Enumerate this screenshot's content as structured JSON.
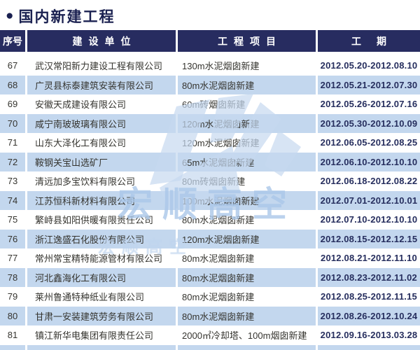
{
  "page": {
    "bullet": "●",
    "title": "国内新建工程"
  },
  "table": {
    "columns": [
      "序号",
      "建设单位",
      "工程项目",
      "工期"
    ],
    "rows": [
      {
        "no": "67",
        "company": "武汉常阳新力建设工程有限公司",
        "project": "130m水泥烟囱新建",
        "period": "2012.05.20-2012.08.10"
      },
      {
        "no": "68",
        "company": "广灵县标泰建筑安装有限公司",
        "project": "80m水泥烟囱新建",
        "period": "2012.05.21-2012.07.30"
      },
      {
        "no": "69",
        "company": "安徽天成建设有限公司",
        "project": "60m砖烟囱新建",
        "period": "2012.05.26-2012.07.16"
      },
      {
        "no": "70",
        "company": "咸宁南玻玻璃有限公司",
        "project": "120m水泥烟囱新建",
        "period": "2012.05.30-2012.10.09"
      },
      {
        "no": "71",
        "company": "山东大泽化工有限公司",
        "project": "120m水泥烟囱新建",
        "period": "2012.06.05-2012.08.25"
      },
      {
        "no": "72",
        "company": "鞍钢关宝山选矿厂",
        "project": "65m水泥烟囱新建",
        "period": "2012.06.10-2012.10.10"
      },
      {
        "no": "73",
        "company": "清远加多宝饮料有限公司",
        "project": "80m砖烟囱新建",
        "period": "2012.06.18-2012.08.22"
      },
      {
        "no": "74",
        "company": "江苏恒科新材料有限公司",
        "project": "100m水泥烟囱新建",
        "period": "2012.07.01-2012.10.01"
      },
      {
        "no": "75",
        "company": "繁峙县如阳供暖有限责任公司",
        "project": "80m水泥烟囱新建",
        "period": "2012.07.10-2012.10.10"
      },
      {
        "no": "76",
        "company": "浙江逸盛石化股份有限公司",
        "project": "120m水泥烟囱新建",
        "period": "2012.08.15-2012.12.15"
      },
      {
        "no": "77",
        "company": "常州常宝精特能源管材有限公司",
        "project": "80m水泥烟囱新建",
        "period": "2012.08.21-2012.11.10"
      },
      {
        "no": "78",
        "company": "河北鑫海化工有限公司",
        "project": "80m水泥烟囱新建",
        "period": "2012.08.23-2012.11.02"
      },
      {
        "no": "79",
        "company": "莱州鲁通特种纸业有限公司",
        "project": "80m水泥烟囱新建",
        "period": "2012.08.25-2012.11.15"
      },
      {
        "no": "80",
        "company": "甘肃一安装建筑劳务有限公司",
        "project": "80m水泥烟囱新建",
        "period": "2012.08.26-2012.10.24"
      },
      {
        "no": "81",
        "company": "镇江新华电集团有限责任公司",
        "project": "2000㎡冷却塔、100m烟囱新建",
        "period": "2012.09.16-2013.03.28"
      }
    ]
  },
  "watermark": {
    "text": "宏顺高空"
  },
  "colors": {
    "header_bg": "#272c60",
    "row_alt_bg": "#c3d7ee",
    "title_color": "#1a2050",
    "period_color": "#262e5e",
    "watermark_color": "#aac7e8"
  }
}
